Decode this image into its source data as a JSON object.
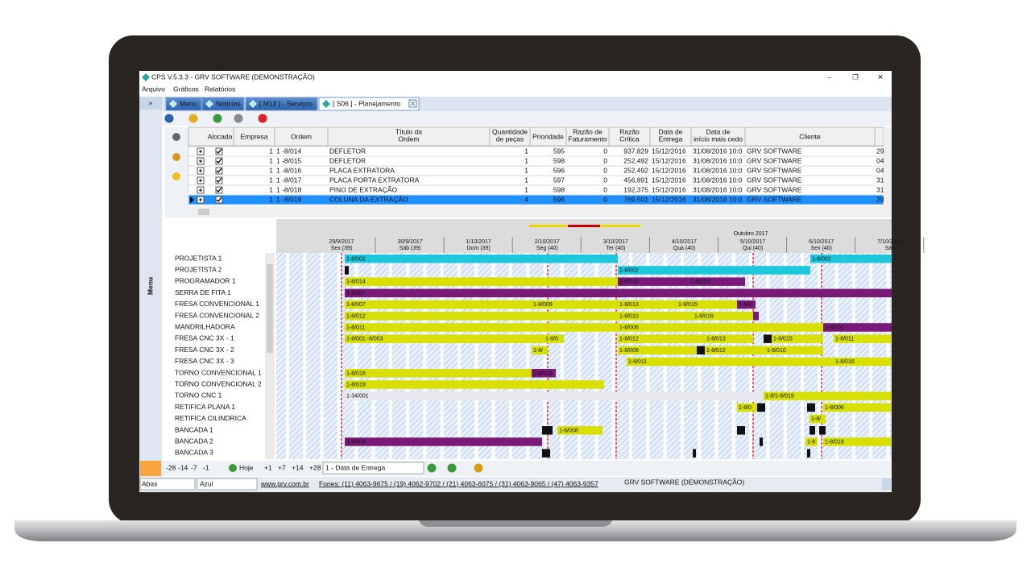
{
  "window": {
    "title": "CPS V.5.3.3 - GRV SOFTWARE (DEMONSTRAÇÃO)",
    "controls": [
      "–",
      "❐",
      "✕"
    ]
  },
  "menu": [
    "Arquivo",
    "Gráficos",
    "Relatórios"
  ],
  "sidebar": {
    "toggle": "»",
    "label": "Menu"
  },
  "tabs": [
    "Menu",
    "Notícias",
    "[ M13 ] - Serviços",
    "[ S06 ] - Planejamento"
  ],
  "table": {
    "headers": [
      [
        "Alocada"
      ],
      [
        "Empresa"
      ],
      [
        "Ordem"
      ],
      [
        "Título da",
        "Ordem"
      ],
      [
        "Quantidade",
        "de peças"
      ],
      [
        "Prioridade"
      ],
      [
        "Razão de",
        "Faturamento"
      ],
      [
        "Razão",
        "Crítica"
      ],
      [
        "Data de",
        "Entrega"
      ],
      [
        "Data de",
        "início mais cedo"
      ],
      [
        "Cliente"
      ]
    ],
    "rows": [
      [
        "1",
        "1 -8/014",
        "DEFLETOR",
        "1",
        "595",
        "0",
        "937,829",
        "15/12/2016",
        "31/08/2016 10:0",
        "GRV SOFTWARE",
        "29"
      ],
      [
        "1",
        "1 -8/015",
        "DEFLETOR",
        "1",
        "598",
        "0",
        "252,492",
        "15/12/2016",
        "31/08/2016 10:0",
        "GRV SOFTWARE",
        "04"
      ],
      [
        "1",
        "1 -8/016",
        "PLACA EXTRATORA",
        "1",
        "596",
        "0",
        "252,492",
        "15/12/2016",
        "31/08/2016 10:0",
        "GRV SOFTWARE",
        "04"
      ],
      [
        "1",
        "1 -8/017",
        "PLACA PORTA EXTRATORA",
        "1",
        "597",
        "0",
        "456,891",
        "15/12/2016",
        "31/08/2016 10:0",
        "GRV SOFTWARE",
        "31"
      ],
      [
        "1",
        "1 -8/018",
        "PINO DE EXTRAÇÃO",
        "1",
        "598",
        "0",
        "192,375",
        "15/12/2016",
        "31/08/2016 10:0",
        "GRV SOFTWARE",
        "31"
      ],
      [
        "1",
        "1 -8/019",
        "COLUNA DA EXTRAÇÃO",
        "4",
        "596",
        "0",
        "769,501",
        "15/12/2016",
        "31/08/2016 10:0",
        "GRV SOFTWARE",
        "29"
      ]
    ]
  },
  "gantt": {
    "month": "Outubro 2017",
    "days": [
      [
        "29/9/2017",
        "Sex (39)"
      ],
      [
        "30/9/2017",
        "Sáb (39)"
      ],
      [
        "1/10/2017",
        "Dom (39)"
      ],
      [
        "2/10/2017",
        "Seg (40)"
      ],
      [
        "3/10/2017",
        "Ter (40)"
      ],
      [
        "4/10/2017",
        "Qua (40)"
      ],
      [
        "5/10/2017",
        "Qui (40)"
      ],
      [
        "6/10/2017",
        "Sex (40)"
      ],
      [
        "7/10/2017",
        "Sáb"
      ]
    ],
    "rows": [
      {
        "name": "PROJETISTA 1",
        "bars": [
          "1-8/002",
          "1-8/002"
        ]
      },
      {
        "name": "PROJETISTA 2",
        "bars": [
          "1-8/002"
        ]
      },
      {
        "name": "PROGRAMADOR 1",
        "bars": [
          "1-8/014",
          "1-8/010",
          "1-8/016"
        ]
      },
      {
        "name": "SERRA DE FITA 1",
        "bars": [
          "1-8/007"
        ]
      },
      {
        "name": "FRESA CONVENCIONAL 1",
        "bars": [
          "1-8/007",
          "1-8/009",
          "1-8/013",
          "1-8/015",
          "1-8/0"
        ]
      },
      {
        "name": "FRESA CONVENCIONAL 2",
        "bars": [
          "1-8/012",
          "1-8/010",
          "1-8/016"
        ]
      },
      {
        "name": "MANDRILHADORA",
        "bars": [
          "1-8/011",
          "1-8/006",
          "1-8/001"
        ]
      },
      {
        "name": "FRESA CNC 3X - 1",
        "bars": [
          "1-8/001 -8/003",
          "1-8/0",
          "1-8/012",
          "1-8/013",
          "1-8/015",
          "1-8/011"
        ]
      },
      {
        "name": "FRESA CNC 3X - 2",
        "bars": [
          "1-8/",
          "1-8/009",
          "1-8/012",
          "1-8/010"
        ]
      },
      {
        "name": "FRESA CNC 3X - 3",
        "bars": [
          "1-8/011",
          "1-8/016"
        ]
      },
      {
        "name": "TORNO CONVENCIONAL 1",
        "bars": [
          "1-8/018",
          "1-8/013"
        ]
      },
      {
        "name": "TORNO CONVENCIONAL 2",
        "bars": [
          "1-8/019"
        ]
      },
      {
        "name": "TORNO CNC 1",
        "bars": [
          "1-34/001",
          "1-8/1-8/019"
        ]
      },
      {
        "name": "RETIFICA PLANA 1",
        "bars": [
          "1-8/0",
          "1-8/006"
        ]
      },
      {
        "name": "RETIFICA CILINDRICA",
        "bars": [
          "1-8/"
        ]
      },
      {
        "name": "BANCADA 1",
        "bars": [
          "1-8/008"
        ]
      },
      {
        "name": "BANCADA 2",
        "bars": [
          "1-8/003",
          "1-8",
          "1-8/018"
        ]
      },
      {
        "name": "BANCADA 3",
        "bars": []
      }
    ]
  },
  "navigation": {
    "back": [
      "-28",
      "-14",
      "-7",
      "-1"
    ],
    "today": "Hoje",
    "forward": [
      "+1",
      "+7",
      "+14",
      "+28"
    ],
    "sort": "1 - Data de Entrega"
  },
  "status": {
    "tabs_select": "Abas",
    "theme_select": "Azul",
    "site": "www.grv.com.br",
    "phones": "Fones: (11) 4063-9675 / (19) 4062-9702 / (21) 4063-6075 / (31) 4063-9065 / (47) 4063-9357",
    "company": "GRV SOFTWARE (DEMONSTRAÇÃO)"
  }
}
